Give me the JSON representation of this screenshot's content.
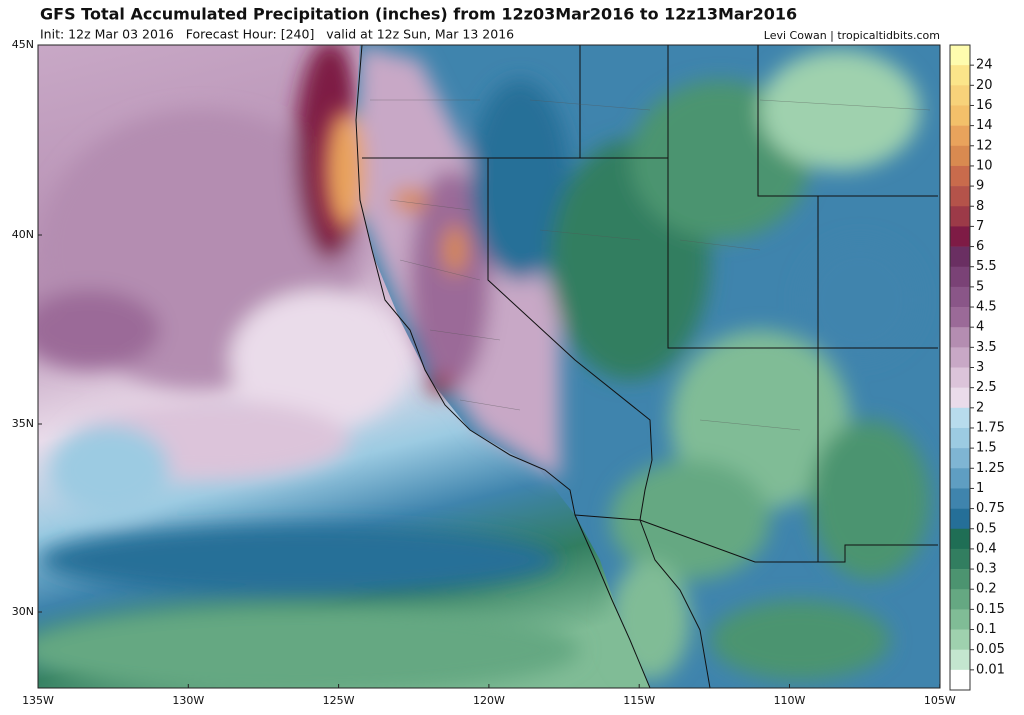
{
  "header": {
    "title": "GFS Total Accumulated Precipitation (inches) from 12z03Mar2016 to 12z13Mar2016",
    "subtitle": "Init: 12z Mar 03 2016   Forecast Hour: [240]   valid at 12z Sun, Mar 13 2016",
    "credit": "Levi Cowan | tropicaltidbits.com"
  },
  "map": {
    "lat_labels": [
      "45N",
      "40N",
      "35N",
      "30N"
    ],
    "lon_labels": [
      "135W",
      "130W",
      "125W",
      "120W",
      "115W",
      "110W",
      "105W"
    ]
  },
  "colorbar": {
    "levels": [
      "24",
      "20",
      "16",
      "14",
      "12",
      "10",
      "9",
      "8",
      "7",
      "6",
      "5.5",
      "5",
      "4.5",
      "4",
      "3.5",
      "3",
      "2.5",
      "2",
      "1.75",
      "1.5",
      "1.25",
      "1",
      "0.75",
      "0.5",
      "0.4",
      "0.3",
      "0.2",
      "0.15",
      "0.1",
      "0.05",
      "0.01"
    ],
    "colors": [
      "#fefcae",
      "#fbe58a",
      "#f7d27a",
      "#f3c06a",
      "#e9a35c",
      "#d98a50",
      "#c96b4c",
      "#b4534a",
      "#9c3a48",
      "#7e1b45",
      "#6a2f62",
      "#7a4276",
      "#8a5688",
      "#9b6a98",
      "#b48db1",
      "#c8a8c6",
      "#dcc4da",
      "#eadcea",
      "#b8dced",
      "#9ccbe2",
      "#7fb5d3",
      "#5f9ec2",
      "#3f84ad",
      "#256f98",
      "#1f6e55",
      "#327e60",
      "#4c9470",
      "#65a882",
      "#80bc96",
      "#9fd1ae",
      "#c4e6cf",
      "#ffffff"
    ]
  }
}
